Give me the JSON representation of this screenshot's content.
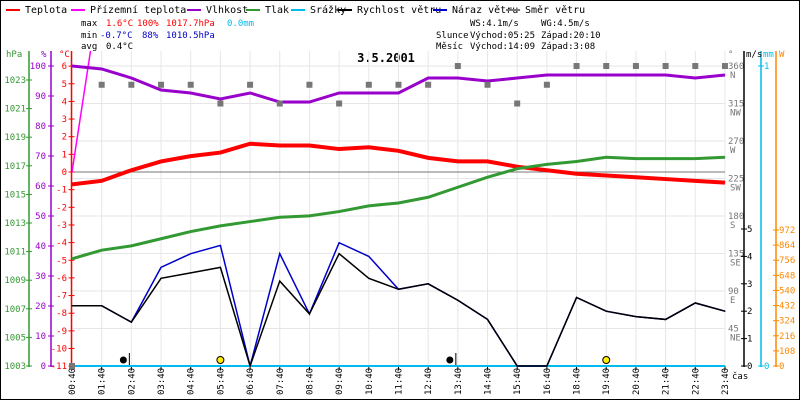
{
  "legend": [
    {
      "label": "Teplota",
      "color": "#ff0000"
    },
    {
      "label": "Přízemní teplota",
      "color": "#ff00ff"
    },
    {
      "label": "Vlhkost",
      "color": "#9900cc"
    },
    {
      "label": "Tlak",
      "color": "#339933"
    },
    {
      "label": "Srážky",
      "color": "#00bbee"
    },
    {
      "label": "Rychlost větru",
      "color": "#000000"
    },
    {
      "label": "Náraz větru",
      "color": "#0000cc"
    },
    {
      "label": "Směr větru",
      "color": "#777777"
    }
  ],
  "stats": {
    "max": {
      "label": "max",
      "temp": "1.6°C",
      "hum": "100%",
      "press": "1017.7hPa",
      "precip": "0.0mm"
    },
    "min": {
      "label": "min",
      "temp": "-0.7°C",
      "hum": "88%",
      "press": "1010.5hPa"
    },
    "avg": {
      "label": "avg",
      "temp": "0.4°C"
    }
  },
  "wind": {
    "ws": "WS:4.1m/s",
    "wg": "WG:4.5m/s"
  },
  "sun": {
    "label": "Slunce",
    "rise": "Východ:05:25",
    "set": "Západ:20:10"
  },
  "moon": {
    "label": "Měsíc",
    "rise": "Východ:14:09",
    "set": "Západ:3:08"
  },
  "chart_data": {
    "type": "line",
    "title": "3.5.2001",
    "xlabel": "čas",
    "x": [
      "00:40",
      "01:40",
      "02:40",
      "03:40",
      "04:40",
      "05:40",
      "06:40",
      "07:40",
      "08:40",
      "09:40",
      "10:40",
      "11:40",
      "12:40",
      "13:40",
      "14:40",
      "15:40",
      "16:40",
      "18:40",
      "19:40",
      "20:40",
      "21:40",
      "22:40",
      "23:40"
    ],
    "axes": {
      "pressure": {
        "label": "hPa",
        "range": [
          1003,
          1023
        ],
        "ticks": [
          1003,
          1005,
          1007,
          1009,
          1011,
          1013,
          1015,
          1017,
          1019,
          1021,
          1023
        ]
      },
      "humidity": {
        "label": "%",
        "range": [
          0,
          100
        ],
        "ticks": [
          0,
          10,
          20,
          30,
          40,
          50,
          60,
          70,
          80,
          90,
          100
        ]
      },
      "temperature": {
        "label": "°C",
        "range": [
          -11,
          6
        ],
        "ticks": [
          -11,
          -10,
          -9,
          -8,
          -7,
          -6,
          -5,
          -4,
          -3,
          -2,
          -1,
          0,
          1,
          2,
          3,
          4,
          5,
          6
        ]
      },
      "direction": {
        "label": "°",
        "range": [
          0,
          360
        ],
        "ticks": [
          {
            "value": 45,
            "label": "NE"
          },
          {
            "value": 90,
            "label": "E"
          },
          {
            "value": 135,
            "label": "SE"
          },
          {
            "value": 180,
            "label": "S"
          },
          {
            "value": 225,
            "label": "SW"
          },
          {
            "value": 270,
            "label": "W"
          },
          {
            "value": 315,
            "label": "NW"
          },
          {
            "value": 360,
            "label": "N"
          }
        ]
      },
      "wind": {
        "label": "m/s",
        "range": [
          0,
          11
        ],
        "ticks": [
          0,
          1,
          2,
          3,
          4,
          5
        ]
      },
      "precip": {
        "label": "mm",
        "range": [
          0,
          1
        ],
        "ticks": [
          0,
          1
        ]
      },
      "solar": {
        "label": "W",
        "range": [
          0,
          2140
        ],
        "ticks": [
          0,
          108,
          216,
          324,
          432,
          540,
          648,
          756,
          864,
          972
        ]
      }
    },
    "series": [
      {
        "name": "Teplota",
        "axis": "temperature",
        "values": [
          -0.7,
          -0.5,
          0.1,
          0.6,
          0.9,
          1.1,
          1.6,
          1.5,
          1.5,
          1.3,
          1.4,
          1.2,
          0.8,
          0.6,
          0.6,
          0.3,
          0.1,
          -0.1,
          -0.2,
          -0.3,
          -0.4,
          -0.5,
          -0.6
        ]
      },
      {
        "name": "Přízemní teplota",
        "axis": "temperature",
        "values": [
          0,
          11,
          null,
          null,
          null,
          null,
          null,
          null,
          null,
          null,
          null,
          null,
          null,
          null,
          null,
          null,
          null,
          null,
          null,
          null,
          null,
          null,
          null
        ]
      },
      {
        "name": "Vlhkost",
        "axis": "humidity",
        "values": [
          100,
          99,
          96,
          92,
          91,
          89,
          91,
          88,
          88,
          91,
          91,
          91,
          96,
          96,
          95,
          96,
          97,
          97,
          97,
          97,
          97,
          96,
          97
        ]
      },
      {
        "name": "Tlak",
        "axis": "pressure",
        "values": [
          1010.5,
          1011.1,
          1011.4,
          1011.9,
          1012.4,
          1012.8,
          1013.1,
          1013.4,
          1013.5,
          1013.8,
          1014.2,
          1014.4,
          1014.8,
          1015.5,
          1016.2,
          1016.8,
          1017.1,
          1017.3,
          1017.6,
          1017.5,
          1017.5,
          1017.5,
          1017.6
        ]
      },
      {
        "name": "Srážky",
        "axis": "precip",
        "values": [
          0,
          0,
          0,
          0,
          0,
          0,
          0,
          0,
          0,
          0,
          0,
          0,
          0,
          0,
          0,
          0,
          0,
          0,
          0,
          0,
          0,
          0,
          0
        ]
      },
      {
        "name": "Náraz větru",
        "axis": "wind",
        "values": [
          2.2,
          2.2,
          1.6,
          3.6,
          4.1,
          4.4,
          0,
          4.1,
          1.9,
          4.5,
          4.0,
          2.8,
          3.0,
          2.4,
          1.7,
          0,
          0,
          2.5,
          2.0,
          1.8,
          1.7,
          2.3,
          2.0
        ]
      },
      {
        "name": "Rychlost větru",
        "axis": "wind",
        "values": [
          2.2,
          2.2,
          1.6,
          3.2,
          3.4,
          3.6,
          0,
          3.1,
          1.9,
          4.1,
          3.2,
          2.8,
          3.0,
          2.4,
          1.7,
          0,
          0,
          2.5,
          2.0,
          1.8,
          1.7,
          2.3,
          2.0
        ]
      },
      {
        "name": "Směr větru",
        "axis": "direction",
        "style": "markers",
        "values": [
          0,
          337.5,
          337.5,
          337.5,
          337.5,
          315,
          337.5,
          315,
          337.5,
          315,
          337.5,
          337.5,
          337.5,
          360,
          337.5,
          315,
          337.5,
          360,
          360,
          360,
          360,
          360,
          360
        ]
      }
    ],
    "weather_icons": [
      {
        "time_index": 2,
        "type": "rain"
      },
      {
        "time_index": 5,
        "type": "sun"
      },
      {
        "time_index": 13,
        "type": "rain"
      },
      {
        "time_index": 18,
        "type": "sun"
      }
    ],
    "grid": true,
    "legend_position": "top"
  }
}
